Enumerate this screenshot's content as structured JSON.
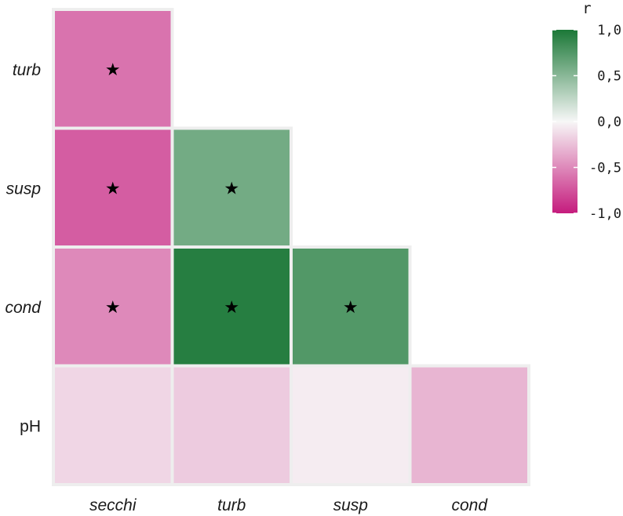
{
  "chart_data": {
    "type": "heatmap",
    "x_categories": [
      "secchi",
      "turb",
      "susp",
      "cond"
    ],
    "y_categories": [
      "turb",
      "susp",
      "cond",
      "pH"
    ],
    "italic_labels": [
      "secchi",
      "turb",
      "susp",
      "cond"
    ],
    "cells": [
      {
        "x": "secchi",
        "y": "turb",
        "r": -0.6,
        "significant": true
      },
      {
        "x": "secchi",
        "y": "susp",
        "r": -0.7,
        "significant": true
      },
      {
        "x": "turb",
        "y": "susp",
        "r": 0.6,
        "significant": true
      },
      {
        "x": "secchi",
        "y": "cond",
        "r": -0.5,
        "significant": true
      },
      {
        "x": "turb",
        "y": "cond",
        "r": 0.95,
        "significant": true
      },
      {
        "x": "susp",
        "y": "cond",
        "r": 0.75,
        "significant": true
      },
      {
        "x": "secchi",
        "y": "pH",
        "r": -0.15,
        "significant": false
      },
      {
        "x": "turb",
        "y": "pH",
        "r": -0.2,
        "significant": false
      },
      {
        "x": "susp",
        "y": "pH",
        "r": -0.05,
        "significant": false
      },
      {
        "x": "cond",
        "y": "pH",
        "r": -0.3,
        "significant": false
      }
    ],
    "significance_symbol": "★",
    "legend": {
      "title": "r",
      "ticks": [
        "1,0",
        "0,5",
        "0,0",
        "-0,5",
        "-1,0"
      ],
      "range": [
        -1,
        1
      ],
      "placement": "right"
    },
    "colors": {
      "positive": "#1b7837",
      "neutral": "#f7f7f7",
      "negative": "#c51b7d"
    }
  }
}
